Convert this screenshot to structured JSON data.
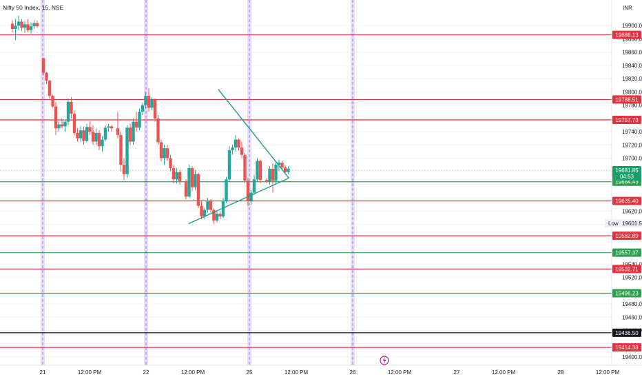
{
  "chart_data": {
    "type": "candlestick",
    "title": "Nifty 50 Index, 15, NSE",
    "currency": "INR",
    "ylim": [
      19390,
      19920
    ],
    "y_ticks": [
      19900.0,
      19880.0,
      19860.0,
      19840.0,
      19820.0,
      19800.0,
      19780.0,
      19740.0,
      19720.0,
      19700.0,
      19620.0,
      19540.0,
      19520.0,
      19480.0,
      19460.0,
      19440.0,
      19400.0
    ],
    "x_tick_labels": [
      "21",
      "12:00 PM",
      "22",
      "12:00 PM",
      "25",
      "12:00 PM",
      "26",
      "12:00 PM",
      "27",
      "12:00 PM",
      "28",
      "12:00 PM"
    ],
    "session_breaks": [
      "21",
      "22",
      "25",
      "26"
    ],
    "price_lines": [
      {
        "value": 19886.13,
        "label": "19886.13",
        "color": "#e5323f"
      },
      {
        "value": 19788.51,
        "label": "19788.51",
        "color": "#e5323f"
      },
      {
        "value": 19757.73,
        "label": "19757.73",
        "color": "#e5323f"
      },
      {
        "value": 19664.43,
        "label": "19664.43",
        "color": "#2e9e4f"
      },
      {
        "value": 19635.4,
        "label": "19635.40",
        "color": "#e5323f"
      },
      {
        "value": 19582.89,
        "label": "19582.89",
        "color": "#e5323f"
      },
      {
        "value": 19557.37,
        "label": "19557.37",
        "color": "#2e9e4f"
      },
      {
        "value": 19532.71,
        "label": "19532.71",
        "color": "#e5323f"
      },
      {
        "value": 19496.23,
        "label": "19496.23",
        "color": "#2e9e4f"
      },
      {
        "value": 19436.5,
        "label": "19436.50",
        "color": "#131722"
      },
      {
        "value": 19414.38,
        "label": "19414.38",
        "color": "#e5323f"
      }
    ],
    "current_price": {
      "value": 19681.85,
      "label": "19681.85",
      "countdown": "04:53",
      "color": "#1e9e6a"
    },
    "low_marker": {
      "label": "Low",
      "value": 19601.55,
      "text": "19601.55"
    },
    "triangle": {
      "upper": [
        [
          33.2,
          19804
        ],
        [
          44.6,
          19670
        ]
      ],
      "lower": [
        [
          28.4,
          19601
        ],
        [
          44.6,
          19670
        ]
      ]
    },
    "candles": [
      [
        0,
        19903,
        19908,
        19890,
        19895
      ],
      [
        0.5,
        19895,
        19910,
        19878,
        19900
      ],
      [
        1,
        19900,
        19915,
        19893,
        19906
      ],
      [
        1.5,
        19906,
        19910,
        19892,
        19897
      ],
      [
        2,
        19897,
        19907,
        19889,
        19902
      ],
      [
        2.5,
        19902,
        19910,
        19890,
        19893
      ],
      [
        3,
        19893,
        19905,
        19888,
        19899
      ],
      [
        3.5,
        19899,
        19908,
        19895,
        19904
      ],
      [
        4,
        19904,
        19908,
        19897,
        19899
      ],
      [
        5,
        19851,
        19851,
        19825,
        19829
      ],
      [
        5.5,
        19829,
        19830,
        19812,
        19817
      ],
      [
        6,
        19817,
        19818,
        19790,
        19794
      ],
      [
        6.5,
        19794,
        19796,
        19776,
        19778
      ],
      [
        7,
        19778,
        19785,
        19735,
        19745
      ],
      [
        7.5,
        19745,
        19755,
        19740,
        19751
      ],
      [
        8,
        19751,
        19760,
        19745,
        19748
      ],
      [
        8.5,
        19748,
        19758,
        19740,
        19755
      ],
      [
        9,
        19755,
        19790,
        19750,
        19785
      ],
      [
        9.5,
        19785,
        19792,
        19760,
        19767
      ],
      [
        10,
        19767,
        19772,
        19735,
        19738
      ],
      [
        10.5,
        19738,
        19745,
        19725,
        19730
      ],
      [
        11,
        19730,
        19748,
        19725,
        19742
      ],
      [
        11.5,
        19742,
        19748,
        19720,
        19726
      ],
      [
        12,
        19726,
        19752,
        19724,
        19747
      ],
      [
        12.5,
        19747,
        19755,
        19735,
        19740
      ],
      [
        13,
        19740,
        19750,
        19720,
        19725
      ],
      [
        13.5,
        19725,
        19745,
        19720,
        19738
      ],
      [
        14,
        19738,
        19742,
        19712,
        19718
      ],
      [
        14.5,
        19718,
        19733,
        19710,
        19728
      ],
      [
        15,
        19728,
        19750,
        19725,
        19746
      ],
      [
        15.5,
        19746,
        19752,
        19740,
        19748
      ],
      [
        16,
        19748,
        19750,
        19740,
        19745
      ],
      [
        17,
        19745,
        19770,
        19730,
        19735
      ],
      [
        17.5,
        19735,
        19740,
        19680,
        19690
      ],
      [
        18,
        19690,
        19700,
        19667,
        19676
      ],
      [
        18.5,
        19676,
        19750,
        19670,
        19746
      ],
      [
        19,
        19746,
        19752,
        19720,
        19725
      ],
      [
        19.5,
        19725,
        19760,
        19720,
        19755
      ],
      [
        20,
        19755,
        19770,
        19740,
        19746
      ],
      [
        20.5,
        19746,
        19775,
        19742,
        19770
      ],
      [
        21,
        19770,
        19784,
        19765,
        19780
      ],
      [
        21.5,
        19780,
        19800,
        19775,
        19794
      ],
      [
        22,
        19794,
        19806,
        19770,
        19776
      ],
      [
        22.5,
        19776,
        19792,
        19772,
        19788
      ],
      [
        23,
        19788,
        19790,
        19755,
        19760
      ],
      [
        23.5,
        19760,
        19765,
        19720,
        19724
      ],
      [
        24,
        19724,
        19728,
        19695,
        19700
      ],
      [
        24.5,
        19700,
        19720,
        19690,
        19715
      ],
      [
        25,
        19715,
        19720,
        19696,
        19700
      ],
      [
        25.5,
        19700,
        19705,
        19680,
        19685
      ],
      [
        26,
        19685,
        19690,
        19662,
        19668
      ],
      [
        26.5,
        19668,
        19685,
        19662,
        19679
      ],
      [
        27,
        19679,
        19682,
        19660,
        19665
      ],
      [
        28,
        19665,
        19668,
        19638,
        19642
      ],
      [
        28.5,
        19642,
        19690,
        19640,
        19685
      ],
      [
        29,
        19685,
        19688,
        19650,
        19656
      ],
      [
        29.5,
        19656,
        19682,
        19652,
        19676
      ],
      [
        30,
        19676,
        19678,
        19625,
        19628
      ],
      [
        30.5,
        19628,
        19635,
        19608,
        19612
      ],
      [
        31,
        19612,
        19625,
        19608,
        19622
      ],
      [
        31.5,
        19622,
        19640,
        19618,
        19635
      ],
      [
        32,
        19635,
        19638,
        19618,
        19622
      ],
      [
        32.5,
        19622,
        19624,
        19601,
        19606
      ],
      [
        33,
        19606,
        19620,
        19603,
        19616
      ],
      [
        33.5,
        19616,
        19620,
        19608,
        19612
      ],
      [
        34,
        19612,
        19640,
        19610,
        19636
      ],
      [
        34.5,
        19636,
        19672,
        19632,
        19668
      ],
      [
        35,
        19668,
        19718,
        19665,
        19712
      ],
      [
        35.5,
        19712,
        19720,
        19705,
        19716
      ],
      [
        36,
        19716,
        19735,
        19710,
        19728
      ],
      [
        36.5,
        19728,
        19730,
        19712,
        19716
      ],
      [
        37,
        19716,
        19725,
        19700,
        19705
      ],
      [
        37.5,
        19705,
        19708,
        19662,
        19666
      ],
      [
        38,
        19666,
        19670,
        19628,
        19636
      ],
      [
        38.5,
        19636,
        19652,
        19630,
        19648
      ],
      [
        39,
        19648,
        19675,
        19645,
        19668
      ],
      [
        39.5,
        19668,
        19700,
        19665,
        19696
      ],
      [
        40,
        19696,
        19698,
        19662,
        19667
      ],
      [
        41,
        19667,
        19670,
        19663,
        19665
      ],
      [
        41.5,
        19665,
        19688,
        19660,
        19684
      ],
      [
        42,
        19684,
        19692,
        19648,
        19666
      ],
      [
        42.5,
        19666,
        19695,
        19662,
        19690
      ],
      [
        43,
        19690,
        19698,
        19680,
        19693
      ],
      [
        43.5,
        19693,
        19696,
        19682,
        19686
      ],
      [
        44,
        19686,
        19690,
        19675,
        19679
      ],
      [
        44.5,
        19679,
        19688,
        19676,
        19684
      ]
    ]
  }
}
